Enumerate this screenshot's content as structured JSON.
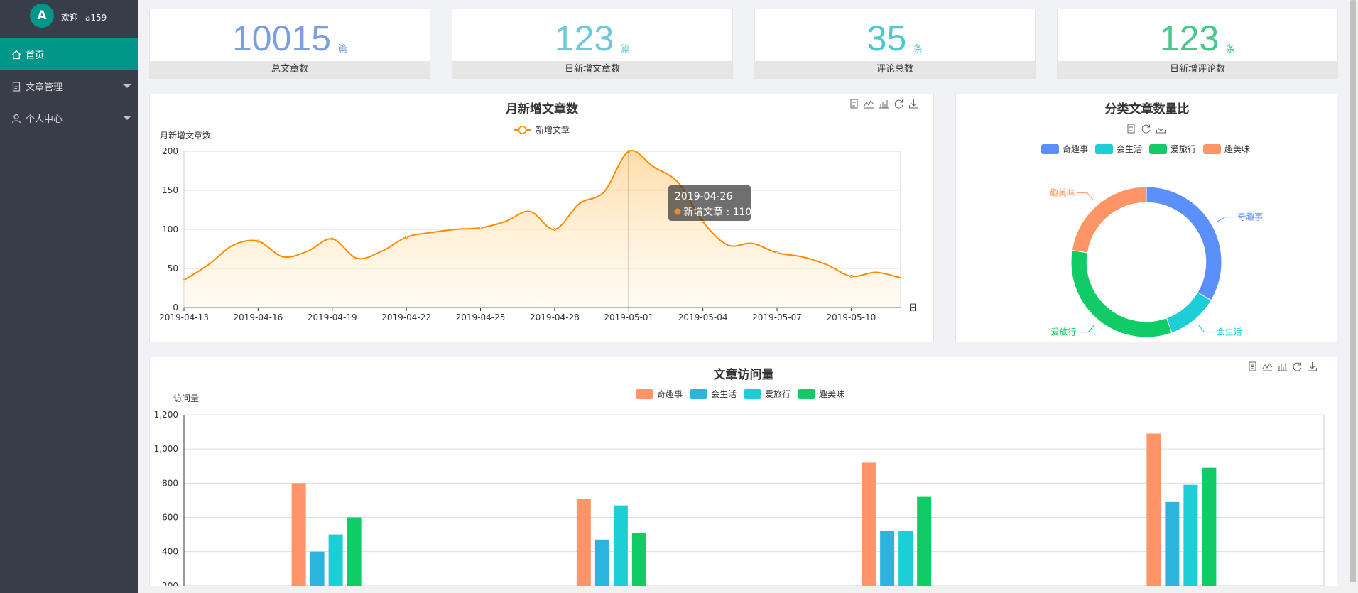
{
  "sidebar": {
    "avatar_letter": "A",
    "welcome": "欢迎",
    "username": "a159",
    "items": [
      {
        "label": "首页",
        "icon": "home-icon"
      },
      {
        "label": "文章管理",
        "icon": "document-icon"
      },
      {
        "label": "个人中心",
        "icon": "user-icon"
      }
    ]
  },
  "stats": [
    {
      "value": "10015",
      "unit": "篇",
      "label": "总文章数",
      "color": "#7b9fe0"
    },
    {
      "value": "123",
      "unit": "篇",
      "label": "日新增文章数",
      "color": "#6dc8d8"
    },
    {
      "value": "35",
      "unit": "条",
      "label": "评论总数",
      "color": "#4ec9cf"
    },
    {
      "value": "123",
      "unit": "条",
      "label": "日新增评论数",
      "color": "#46c88a"
    }
  ],
  "colors": {
    "accent": "#009688",
    "line": "#ff8c00",
    "sidebar": "#393d49"
  },
  "chart_data": [
    {
      "type": "area",
      "title": "月新增文章数",
      "ylabel": "月新增文章数",
      "xlabel": "日",
      "legend": [
        "新增文章"
      ],
      "ylim": [
        0,
        200
      ],
      "yticks": [
        0,
        50,
        100,
        150,
        200
      ],
      "xtick_labels": [
        "2019-04-13",
        "2019-04-16",
        "2019-04-19",
        "2019-04-22",
        "2019-04-25",
        "2019-04-28",
        "2019-05-01",
        "2019-05-04",
        "2019-05-07",
        "2019-05-10"
      ],
      "x": [
        "2019-04-13",
        "2019-04-14",
        "2019-04-15",
        "2019-04-16",
        "2019-04-17",
        "2019-04-18",
        "2019-04-19",
        "2019-04-20",
        "2019-04-21",
        "2019-04-22",
        "2019-04-23",
        "2019-04-24",
        "2019-04-25",
        "2019-04-26",
        "2019-04-27",
        "2019-04-28",
        "2019-04-29",
        "2019-04-30",
        "2019-05-01",
        "2019-05-02",
        "2019-05-03",
        "2019-05-04",
        "2019-05-05",
        "2019-05-06",
        "2019-05-07",
        "2019-05-08",
        "2019-05-09",
        "2019-05-10",
        "2019-05-11",
        "2019-05-12"
      ],
      "series": [
        {
          "name": "新增文章",
          "color": "#ff8c00",
          "values": [
            35,
            55,
            80,
            85,
            65,
            72,
            88,
            63,
            72,
            90,
            96,
            100,
            102,
            110,
            123,
            100,
            133,
            148,
            200,
            180,
            160,
            110,
            80,
            82,
            70,
            65,
            55,
            40,
            45,
            38
          ]
        }
      ],
      "tooltip": {
        "title": "2019-04-26",
        "label": "新增文章",
        "value": "110"
      }
    },
    {
      "type": "pie",
      "title": "分类文章数量比",
      "legend": [
        "奇趣事",
        "会生活",
        "爱旅行",
        "趣美味"
      ],
      "values": [
        335,
        110,
        330,
        225
      ],
      "colors": [
        "#5b8ff9",
        "#1ccfd7",
        "#0fcc67",
        "#ff9566"
      ],
      "inner_ratio": 0.79
    },
    {
      "type": "bar",
      "title": "文章访问量",
      "ylabel": "访问量",
      "legend": [
        "奇趣事",
        "会生活",
        "爱旅行",
        "趣美味"
      ],
      "ylim": [
        0,
        1200
      ],
      "yticks": [
        "200",
        "400",
        "600",
        "800",
        "1,000",
        "1,200"
      ],
      "categories": [
        "",
        "",
        "",
        ""
      ],
      "series": [
        {
          "name": "奇趣事",
          "color": "#ff9566",
          "values": [
            800,
            710,
            920,
            1090
          ]
        },
        {
          "name": "会生活",
          "color": "#2cb4dc",
          "values": [
            400,
            470,
            520,
            690
          ]
        },
        {
          "name": "爱旅行",
          "color": "#1ccfd7",
          "values": [
            500,
            670,
            520,
            790
          ]
        },
        {
          "name": "趣美味",
          "color": "#0fcc67",
          "values": [
            600,
            510,
            720,
            890
          ]
        }
      ]
    }
  ]
}
